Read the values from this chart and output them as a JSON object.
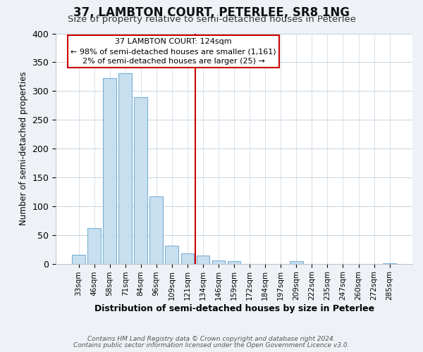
{
  "title": "37, LAMBTON COURT, PETERLEE, SR8 1NG",
  "subtitle": "Size of property relative to semi-detached houses in Peterlee",
  "xlabel": "Distribution of semi-detached houses by size in Peterlee",
  "ylabel": "Number of semi-detached properties",
  "footer_line1": "Contains HM Land Registry data © Crown copyright and database right 2024.",
  "footer_line2": "Contains public sector information licensed under the Open Government Licence v3.0.",
  "annotation_title": "37 LAMBTON COURT: 124sqm",
  "annotation_line1": "← 98% of semi-detached houses are smaller (1,161)",
  "annotation_line2": "2% of semi-detached houses are larger (25) →",
  "bar_labels": [
    "33sqm",
    "46sqm",
    "58sqm",
    "71sqm",
    "84sqm",
    "96sqm",
    "109sqm",
    "121sqm",
    "134sqm",
    "146sqm",
    "159sqm",
    "172sqm",
    "184sqm",
    "197sqm",
    "209sqm",
    "222sqm",
    "235sqm",
    "247sqm",
    "260sqm",
    "272sqm",
    "285sqm"
  ],
  "bar_values": [
    15,
    62,
    322,
    331,
    289,
    117,
    31,
    18,
    14,
    6,
    5,
    0,
    0,
    0,
    4,
    0,
    0,
    0,
    0,
    0,
    1
  ],
  "bar_color": "#c8dff0",
  "bar_edge_color": "#7ab0d4",
  "vline_color": "#cc0000",
  "ylim": [
    0,
    400
  ],
  "yticks": [
    0,
    50,
    100,
    150,
    200,
    250,
    300,
    350,
    400
  ],
  "background_color": "#eef2f7",
  "plot_background_color": "#ffffff",
  "title_fontsize": 12,
  "subtitle_fontsize": 9.5
}
